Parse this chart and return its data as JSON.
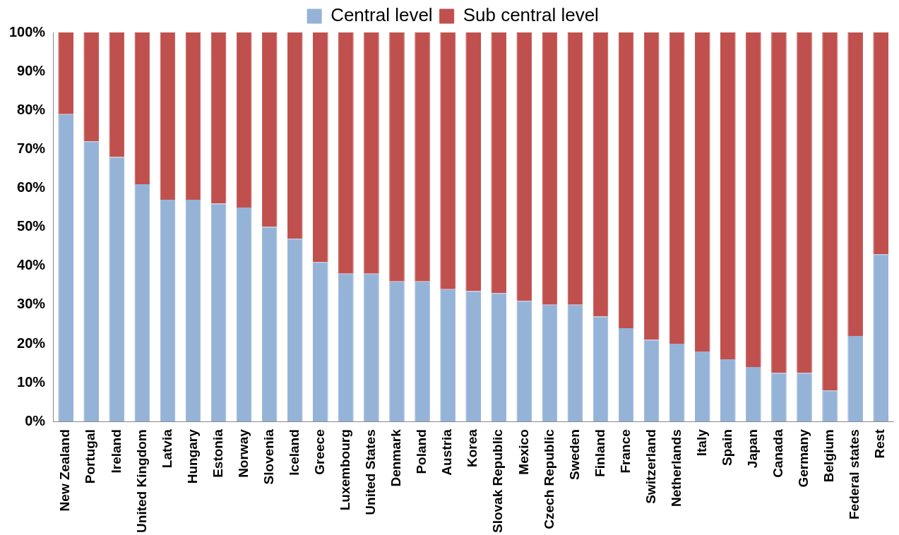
{
  "chart_data": {
    "type": "bar",
    "stacked": true,
    "legend": "top",
    "grid": false,
    "categories": [
      "New Zealand",
      "Portugal",
      "Ireland",
      "United Kingdom",
      "Latvia",
      "Hungary",
      "Estonia",
      "Norway",
      "Slovenia",
      "Iceland",
      "Greece",
      "Luxembourg",
      "United States",
      "Denmark",
      "Poland",
      "Austria",
      "Korea",
      "Slovak Republic",
      "Mexico",
      "Czech Republic",
      "Sweden",
      "Finland",
      "France",
      "Switzerland",
      "Netherlands",
      "Italy",
      "Spain",
      "Japan",
      "Canada",
      "Germany",
      "Belgium",
      "Federal states",
      "Rest"
    ],
    "series": [
      {
        "name": "Central level",
        "color": "#95b3d7",
        "values": [
          79,
          72,
          68,
          61,
          57,
          57,
          56,
          55,
          50,
          47,
          41,
          38,
          38,
          36,
          36,
          34,
          33.5,
          33,
          31,
          30,
          30,
          27,
          24,
          21,
          20,
          18,
          16,
          14,
          12.5,
          12.5,
          8,
          22,
          43
        ]
      },
      {
        "name": "Sub central level",
        "color": "#c0504d",
        "values": [
          21,
          28,
          32,
          39,
          43,
          43,
          44,
          45,
          50,
          53,
          59,
          62,
          62,
          64,
          64,
          66,
          66.5,
          67,
          69,
          70,
          70,
          73,
          76,
          79,
          80,
          82,
          84,
          86,
          87.5,
          87.5,
          92,
          78,
          57
        ]
      }
    ],
    "ylim": [
      0,
      100
    ],
    "yticks": [
      {
        "value": 0,
        "label": "0%"
      },
      {
        "value": 10,
        "label": "10%"
      },
      {
        "value": 20,
        "label": "20%"
      },
      {
        "value": 30,
        "label": "30%"
      },
      {
        "value": 40,
        "label": "40%"
      },
      {
        "value": 50,
        "label": "50%"
      },
      {
        "value": 60,
        "label": "60%"
      },
      {
        "value": 70,
        "label": "70%"
      },
      {
        "value": 80,
        "label": "80%"
      },
      {
        "value": 90,
        "label": "90%"
      },
      {
        "value": 100,
        "label": "100%"
      }
    ]
  }
}
